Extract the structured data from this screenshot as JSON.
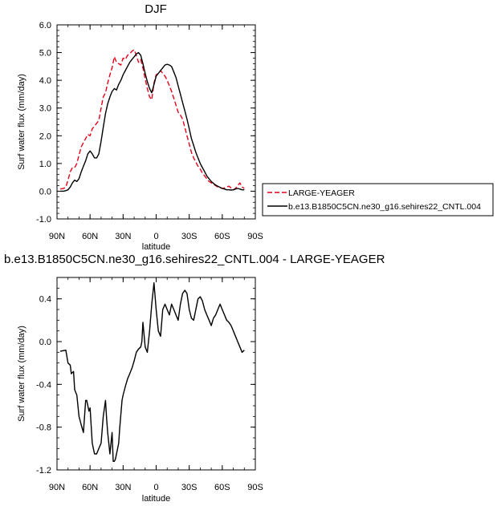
{
  "chart_data": [
    {
      "type": "line",
      "title": "DJF",
      "xlabel": "latitude",
      "ylabel": "Surf water flux (mm/day)",
      "xlim": [
        90,
        -90
      ],
      "ylim": [
        -1.0,
        6.0
      ],
      "xticks": [
        90,
        60,
        30,
        0,
        -30,
        -60,
        -90
      ],
      "xtick_labels": [
        "90N",
        "60N",
        "30N",
        "0",
        "30S",
        "60S",
        "90S"
      ],
      "yticks": [
        -1,
        0,
        1,
        2,
        3,
        4,
        5,
        6
      ],
      "ytick_labels": [
        "-1.0",
        "0.0",
        "1.0",
        "2.0",
        "3.0",
        "4.0",
        "5.0",
        "6.0"
      ],
      "legend_position": "right",
      "series": [
        {
          "name": "LARGE-YEAGER",
          "color": "#e8001a",
          "dash": "dashed",
          "x": [
            87,
            84,
            82,
            80,
            78,
            76,
            74,
            72,
            70,
            68,
            66,
            64,
            62,
            60,
            58,
            56,
            54,
            52,
            50,
            48,
            46,
            44,
            42,
            40,
            38,
            36,
            34,
            32,
            30,
            28,
            26,
            24,
            22,
            20,
            18,
            16,
            14,
            12,
            10,
            8,
            6,
            4,
            2,
            0,
            -2,
            -4,
            -6,
            -8,
            -10,
            -12,
            -14,
            -16,
            -18,
            -20,
            -22,
            -24,
            -26,
            -28,
            -30,
            -32,
            -34,
            -36,
            -38,
            -40,
            -42,
            -44,
            -46,
            -48,
            -50,
            -52,
            -54,
            -56,
            -58,
            -60,
            -62,
            -64,
            -66,
            -68,
            -70,
            -72,
            -74,
            -76,
            -78,
            -80
          ],
          "y": [
            0.08,
            0.1,
            0.15,
            0.4,
            0.7,
            0.85,
            0.85,
            1.0,
            1.3,
            1.6,
            1.75,
            1.9,
            2.05,
            2.0,
            2.25,
            2.35,
            2.45,
            2.55,
            3.0,
            3.4,
            3.55,
            3.9,
            4.2,
            4.45,
            4.85,
            4.65,
            4.6,
            4.55,
            4.8,
            4.75,
            4.9,
            4.95,
            5.05,
            5.1,
            4.9,
            4.65,
            4.75,
            4.45,
            4.05,
            3.7,
            3.4,
            3.3,
            3.9,
            4.2,
            4.25,
            4.35,
            4.25,
            4.15,
            4.0,
            3.8,
            3.6,
            3.35,
            3.1,
            2.85,
            2.75,
            2.6,
            2.3,
            2.0,
            1.7,
            1.4,
            1.2,
            1.05,
            0.9,
            0.8,
            0.65,
            0.55,
            0.45,
            0.35,
            0.3,
            0.25,
            0.2,
            0.15,
            0.12,
            0.1,
            0.12,
            0.15,
            0.18,
            0.12,
            0.05,
            0.1,
            0.2,
            0.3,
            0.15,
            0.1
          ]
        },
        {
          "name": "b.e13.B1850C5CN.ne30_g16.sehires22_CNTL.004",
          "color": "#000000",
          "dash": "solid",
          "x": [
            87,
            84,
            82,
            80,
            78,
            76,
            74,
            72,
            70,
            68,
            66,
            64,
            62,
            60,
            58,
            56,
            54,
            52,
            50,
            48,
            46,
            44,
            42,
            40,
            38,
            36,
            34,
            32,
            30,
            28,
            26,
            24,
            22,
            20,
            18,
            16,
            14,
            12,
            10,
            8,
            6,
            4,
            2,
            0,
            -2,
            -4,
            -6,
            -8,
            -10,
            -12,
            -14,
            -16,
            -18,
            -20,
            -22,
            -24,
            -26,
            -28,
            -30,
            -32,
            -34,
            -36,
            -38,
            -40,
            -42,
            -44,
            -46,
            -48,
            -50,
            -52,
            -54,
            -56,
            -58,
            -60,
            -62,
            -64,
            -66,
            -68,
            -70,
            -72,
            -74,
            -76,
            -78,
            -80
          ],
          "y": [
            0.0,
            0.0,
            0.02,
            0.05,
            0.15,
            0.3,
            0.4,
            0.35,
            0.45,
            0.7,
            0.9,
            1.1,
            1.35,
            1.45,
            1.35,
            1.2,
            1.2,
            1.35,
            1.8,
            2.3,
            2.8,
            3.15,
            3.4,
            3.6,
            3.7,
            3.65,
            3.85,
            4.0,
            4.2,
            4.35,
            4.5,
            4.65,
            4.75,
            4.85,
            4.95,
            5.0,
            4.9,
            4.6,
            4.25,
            3.95,
            3.7,
            3.55,
            3.85,
            4.15,
            4.25,
            4.35,
            4.45,
            4.55,
            4.58,
            4.55,
            4.5,
            4.3,
            4.1,
            3.8,
            3.5,
            3.2,
            2.9,
            2.6,
            2.25,
            1.9,
            1.65,
            1.4,
            1.2,
            1.0,
            0.85,
            0.7,
            0.55,
            0.45,
            0.35,
            0.28,
            0.22,
            0.18,
            0.14,
            0.1,
            0.08,
            0.05,
            0.05,
            0.04,
            0.05,
            0.08,
            0.1,
            0.08,
            0.05,
            0.05
          ]
        }
      ]
    },
    {
      "type": "line",
      "title": "b.e13.B1850C5CN.ne30_g16.sehires22_CNTL.004 - LARGE-YEAGER",
      "xlabel": "latitude",
      "ylabel": "Surf water flux (mm/day)",
      "xlim": [
        90,
        -90
      ],
      "ylim": [
        -1.2,
        0.6
      ],
      "xticks": [
        90,
        60,
        30,
        0,
        -30,
        -60,
        -90
      ],
      "xtick_labels": [
        "90N",
        "60N",
        "30N",
        "0",
        "30S",
        "60S",
        "90S"
      ],
      "yticks": [
        -1.2,
        -0.8,
        -0.4,
        0.0,
        0.4
      ],
      "ytick_labels": [
        "-1.2",
        "-0.8",
        "-0.4",
        "0.0",
        "0.4"
      ],
      "series": [
        {
          "color": "#000000",
          "dash": "solid",
          "x": [
            87,
            82,
            80,
            78,
            77,
            75,
            74,
            72,
            70,
            68,
            66,
            64,
            63,
            61,
            60,
            58,
            56,
            54,
            52,
            50,
            48,
            46,
            45,
            44,
            42,
            40,
            39,
            38,
            37,
            35,
            34,
            33,
            31,
            30,
            28,
            26,
            24,
            22,
            20,
            18,
            16,
            14,
            13,
            12,
            10,
            8,
            6,
            4,
            2,
            0,
            -2,
            -4,
            -6,
            -8,
            -10,
            -12,
            -14,
            -16,
            -18,
            -20,
            -22,
            -24,
            -26,
            -28,
            -30,
            -32,
            -34,
            -36,
            -38,
            -40,
            -42,
            -44,
            -46,
            -48,
            -50,
            -52,
            -54,
            -56,
            -58,
            -60,
            -62,
            -64,
            -66,
            -68,
            -70,
            -72,
            -74,
            -76,
            -78,
            -80
          ],
          "y": [
            -0.09,
            -0.08,
            -0.2,
            -0.22,
            -0.3,
            -0.28,
            -0.45,
            -0.5,
            -0.7,
            -0.78,
            -0.85,
            -0.55,
            -0.55,
            -0.65,
            -0.62,
            -0.95,
            -1.05,
            -1.05,
            -1.0,
            -0.95,
            -0.7,
            -0.55,
            -0.72,
            -0.85,
            -1.05,
            -0.85,
            -1.12,
            -1.12,
            -1.1,
            -1.0,
            -0.95,
            -0.8,
            -0.55,
            -0.5,
            -0.42,
            -0.35,
            -0.3,
            -0.25,
            -0.18,
            -0.1,
            -0.07,
            -0.05,
            0.0,
            0.18,
            -0.05,
            -0.1,
            0.1,
            0.35,
            0.55,
            0.3,
            0.1,
            0.05,
            0.3,
            0.35,
            0.3,
            0.25,
            0.35,
            0.3,
            0.25,
            0.2,
            0.35,
            0.45,
            0.48,
            0.45,
            0.3,
            0.22,
            0.2,
            0.3,
            0.4,
            0.42,
            0.38,
            0.3,
            0.25,
            0.2,
            0.15,
            0.22,
            0.25,
            0.3,
            0.35,
            0.3,
            0.25,
            0.2,
            0.18,
            0.15,
            0.1,
            0.05,
            0.0,
            -0.05,
            -0.1,
            -0.08
          ]
        }
      ]
    }
  ]
}
